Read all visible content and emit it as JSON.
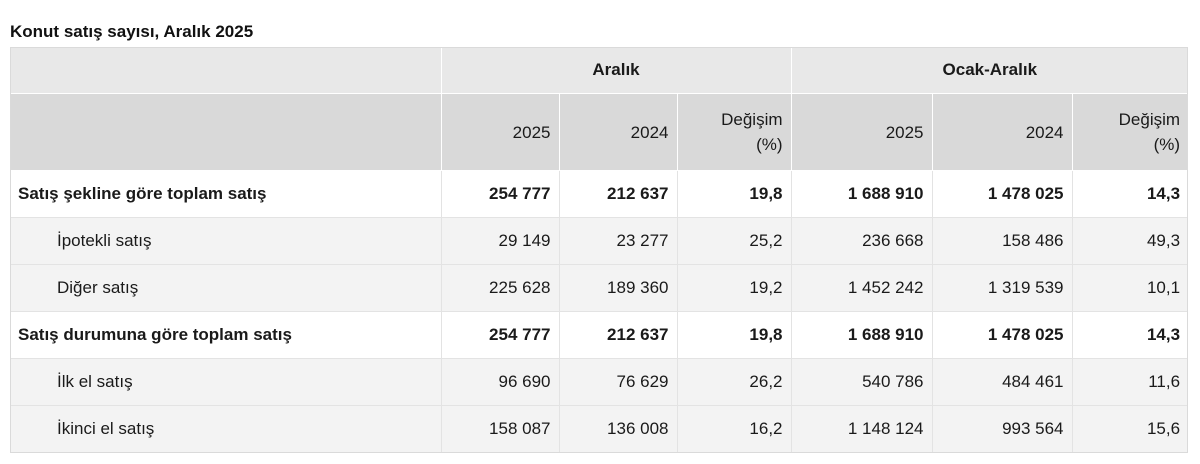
{
  "title": "Konut satış sayısı, Aralık 2025",
  "groups": {
    "aralik": "Aralık",
    "ocak_aralik": "Ocak-Aralık"
  },
  "columns": {
    "y2025": "2025",
    "y2024": "2024",
    "change_line1": "Değişim",
    "change_line2": "(%)"
  },
  "rows": [
    {
      "label": "Satış şekline göre toplam satış",
      "kind": "total",
      "values": [
        "254 777",
        "212 637",
        "19,8",
        "1 688 910",
        "1 478 025",
        "14,3"
      ]
    },
    {
      "label": "İpotekli satış",
      "kind": "sub",
      "values": [
        "29 149",
        "23 277",
        "25,2",
        "236 668",
        "158 486",
        "49,3"
      ]
    },
    {
      "label": "Diğer satış",
      "kind": "sub",
      "values": [
        "225 628",
        "189 360",
        "19,2",
        "1 452 242",
        "1 319 539",
        "10,1"
      ]
    },
    {
      "label": "Satış durumuna göre toplam satış",
      "kind": "total",
      "values": [
        "254 777",
        "212 637",
        "19,8",
        "1 688 910",
        "1 478 025",
        "14,3"
      ]
    },
    {
      "label": "İlk el satış",
      "kind": "sub",
      "values": [
        "96 690",
        "76 629",
        "26,2",
        "540 786",
        "484 461",
        "11,6"
      ]
    },
    {
      "label": "İkinci el satış",
      "kind": "sub",
      "values": [
        "158 087",
        "136 008",
        "16,2",
        "1 148 124",
        "993 564",
        "15,6"
      ]
    }
  ]
}
